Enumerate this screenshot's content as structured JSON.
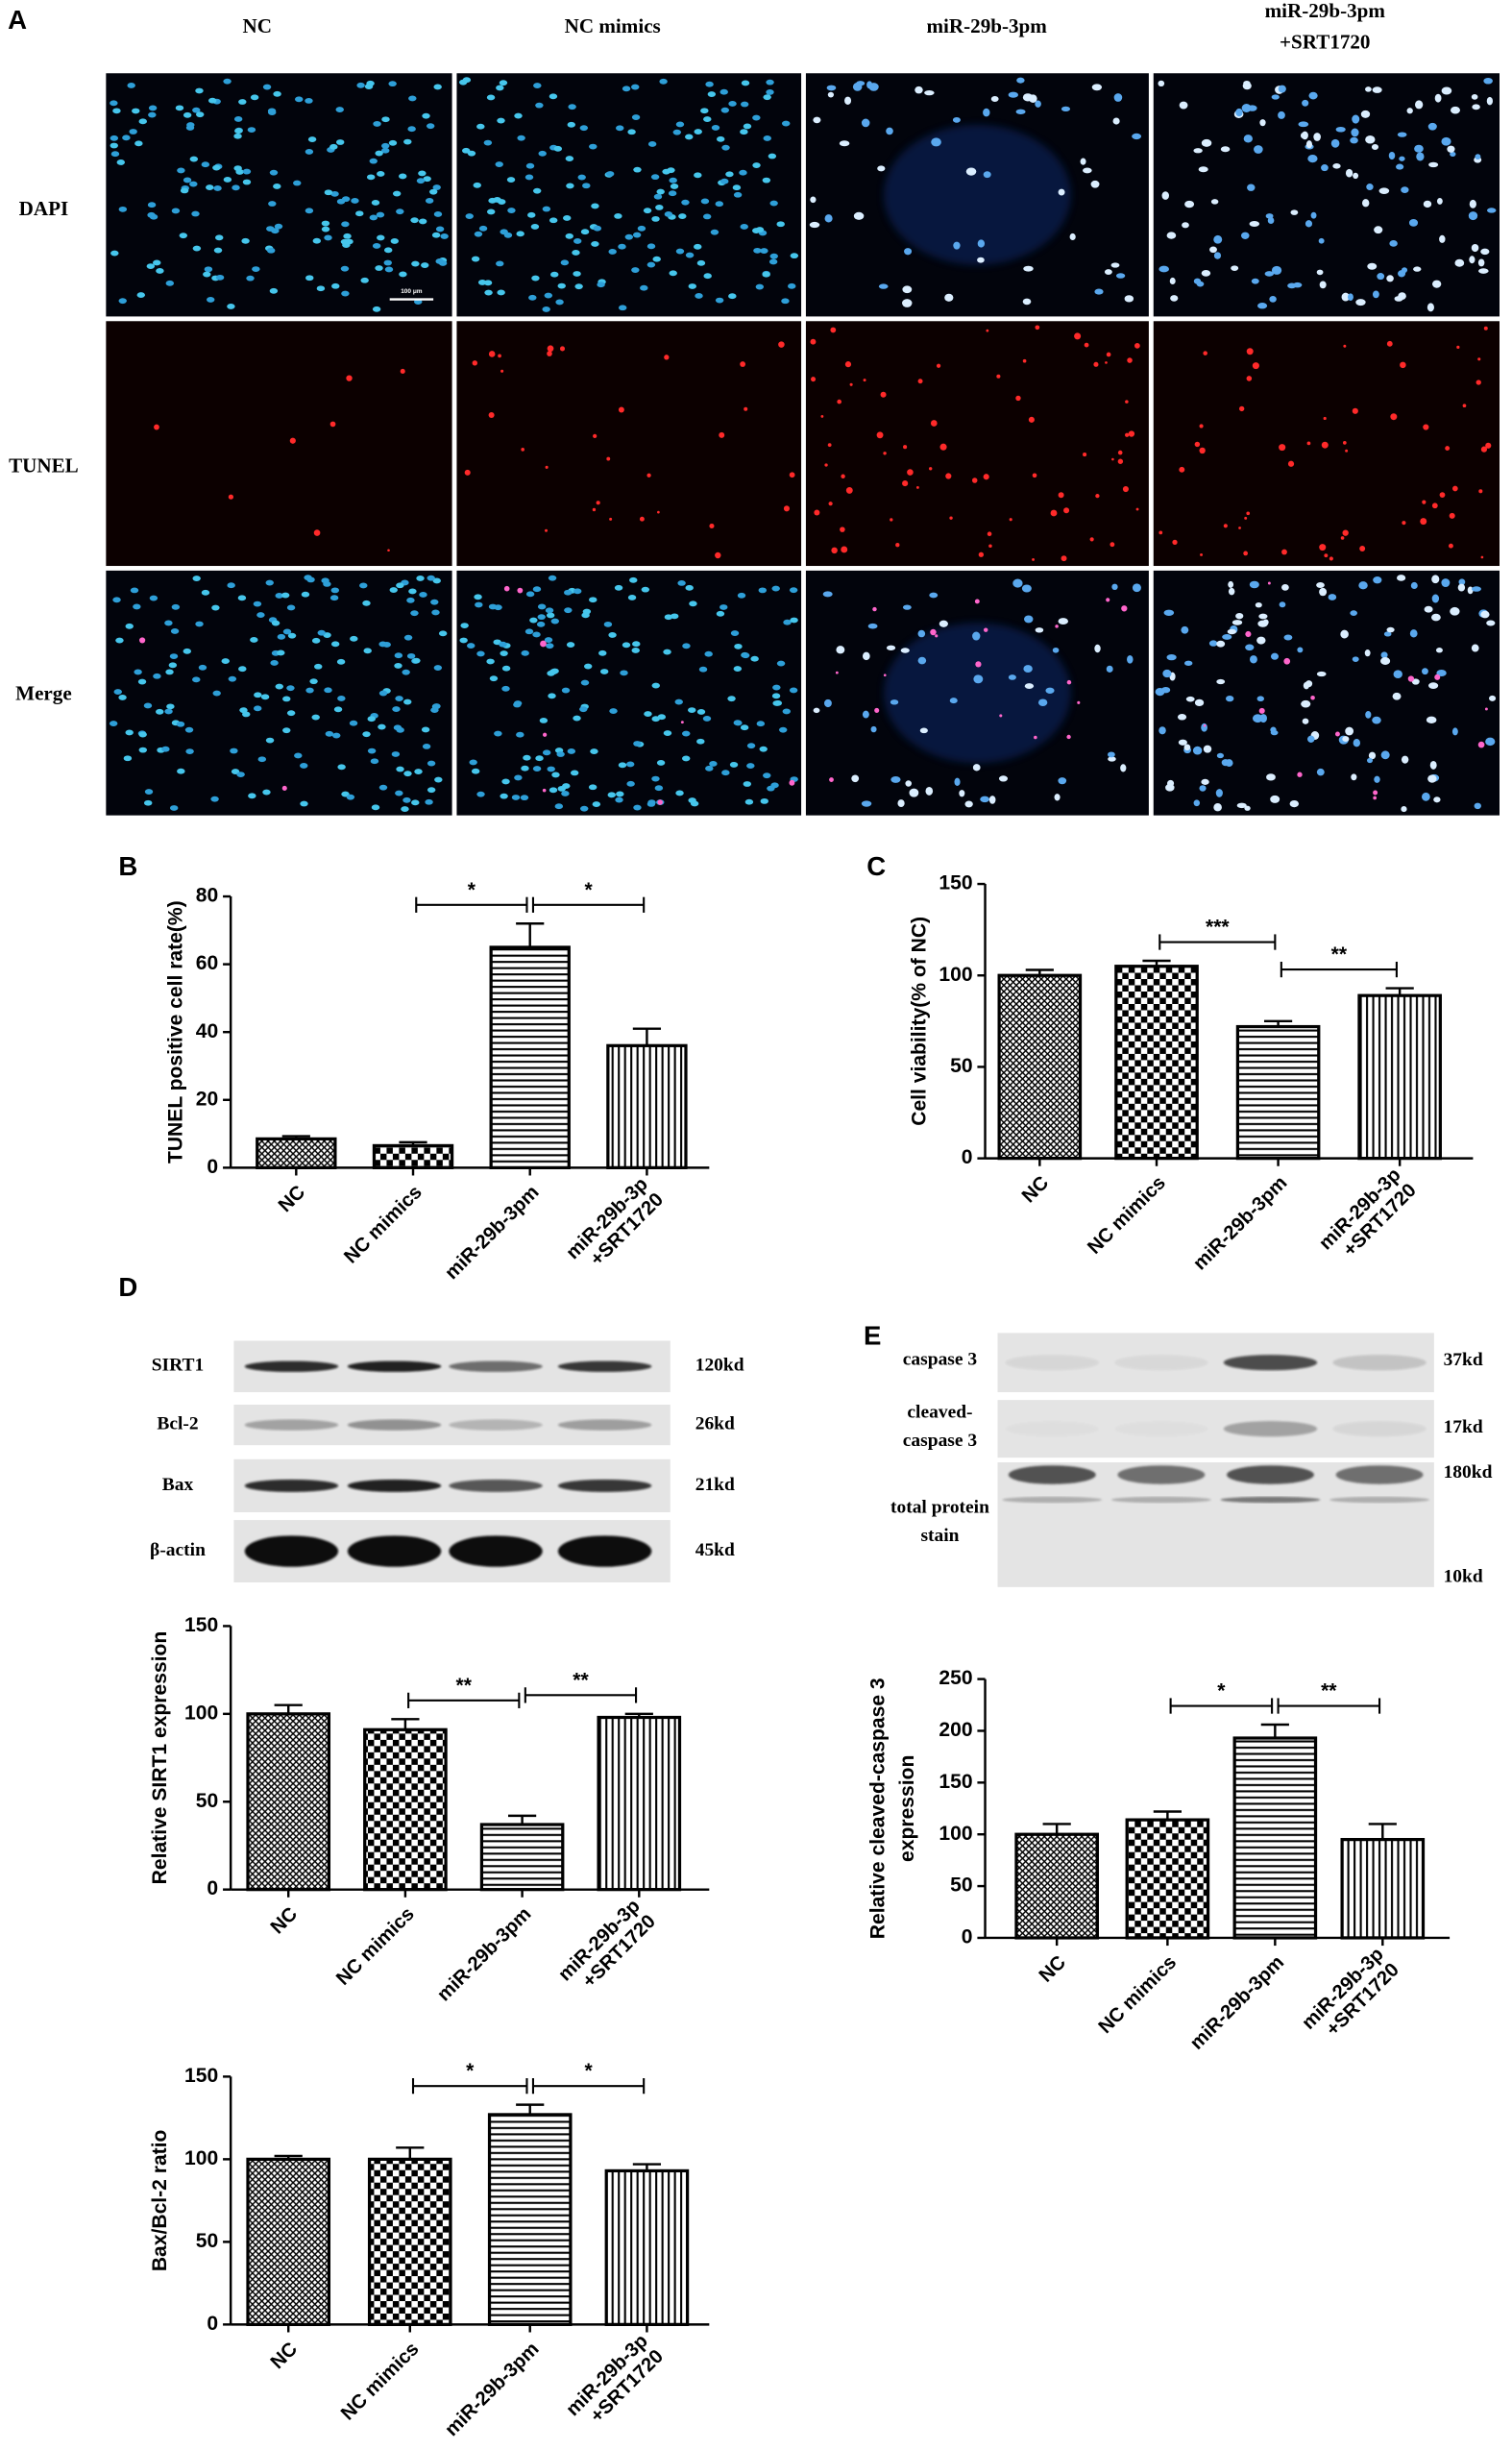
{
  "panel_labels": {
    "a": "A",
    "b": "B",
    "c": "C",
    "d": "D",
    "e": "E"
  },
  "panel_a": {
    "columns": [
      "NC",
      "NC mimics",
      "miR-29b-3pm",
      [
        "miR-29b-3pm",
        "+SRT1720"
      ]
    ],
    "rows": [
      "DAPI",
      "TUNEL",
      "Merge"
    ],
    "scale_bar": "100 μm"
  },
  "blots_d": {
    "rows": [
      {
        "label": "SIRT1",
        "size": "120kd"
      },
      {
        "label": "Bcl-2",
        "size": "26kd"
      },
      {
        "label": "Bax",
        "size": "21kd"
      },
      {
        "label": "β-actin",
        "size": "45kd"
      }
    ]
  },
  "blots_e": {
    "rows": [
      {
        "label": [
          "caspase 3"
        ],
        "size": "37kd"
      },
      {
        "label": [
          "cleaved-",
          "caspase 3"
        ],
        "size": "17kd"
      },
      {
        "label": [
          "total protein",
          "stain"
        ],
        "size": "180kd"
      }
    ],
    "bottom_size": "10kd"
  },
  "chart_data": [
    {
      "type": "bar",
      "ylabel": [
        "TUNEL positive cell rate(%)"
      ],
      "categories": [
        "NC",
        "NC mimics",
        "miR-29b-3pm",
        [
          "miR-29b-3p",
          "+SRT1720"
        ]
      ],
      "values": [
        8.5,
        6.5,
        65,
        36
      ],
      "errors": [
        0.8,
        1,
        7,
        5
      ],
      "patterns": [
        "crosshatch",
        "checker",
        "horizontal",
        "vertical"
      ],
      "ylim": [
        0,
        80
      ],
      "yticks": [
        0,
        20,
        40,
        60,
        80
      ],
      "significance": [
        {
          "groups": [
            1,
            2
          ],
          "label": "*"
        },
        {
          "groups": [
            2,
            3
          ],
          "label": "*"
        }
      ]
    },
    {
      "type": "bar",
      "ylabel": [
        "Cell viability(% of NC)"
      ],
      "categories": [
        "NC",
        "NC mimics",
        "miR-29b-3pm",
        [
          "miR-29b-3p",
          "+SRT1720"
        ]
      ],
      "values": [
        100,
        105,
        72,
        89
      ],
      "errors": [
        3,
        3,
        3,
        4
      ],
      "patterns": [
        "crosshatch",
        "checker",
        "horizontal",
        "vertical"
      ],
      "ylim": [
        0,
        150
      ],
      "yticks": [
        0,
        50,
        100,
        150
      ],
      "significance": [
        {
          "groups": [
            1,
            2
          ],
          "label": "***"
        },
        {
          "groups": [
            2,
            3
          ],
          "label": "**"
        }
      ]
    },
    {
      "type": "bar",
      "ylabel": [
        "Relative SIRT1 expression"
      ],
      "categories": [
        "NC",
        "NC mimics",
        "miR-29b-3pm",
        [
          "miR-29b-3p",
          "+SRT1720"
        ]
      ],
      "values": [
        100,
        91,
        37,
        98
      ],
      "errors": [
        5,
        6,
        5,
        2
      ],
      "patterns": [
        "crosshatch",
        "checker",
        "horizontal",
        "vertical"
      ],
      "ylim": [
        0,
        150
      ],
      "yticks": [
        0,
        50,
        100,
        150
      ],
      "significance": [
        {
          "groups": [
            1,
            2
          ],
          "label": "**"
        },
        {
          "groups": [
            2,
            3
          ],
          "label": "**"
        }
      ]
    },
    {
      "type": "bar",
      "ylabel": [
        "Bax/Bcl-2 ratio"
      ],
      "categories": [
        "NC",
        "NC mimics",
        "miR-29b-3pm",
        [
          "miR-29b-3p",
          "+SRT1720"
        ]
      ],
      "values": [
        100,
        100,
        127,
        93
      ],
      "errors": [
        2,
        7,
        6,
        4
      ],
      "patterns": [
        "crosshatch",
        "checker",
        "horizontal",
        "vertical"
      ],
      "ylim": [
        0,
        150
      ],
      "yticks": [
        0,
        50,
        100,
        150
      ],
      "significance": [
        {
          "groups": [
            1,
            2
          ],
          "label": "*"
        },
        {
          "groups": [
            2,
            3
          ],
          "label": "*"
        }
      ]
    },
    {
      "type": "bar",
      "ylabel": [
        "Relative cleaved-caspase 3",
        "expression"
      ],
      "categories": [
        "NC",
        "NC mimics",
        "miR-29b-3pm",
        [
          "miR-29b-3p",
          "+SRT1720"
        ]
      ],
      "values": [
        100,
        114,
        193,
        95
      ],
      "errors": [
        10,
        8,
        13,
        15
      ],
      "patterns": [
        "crosshatch",
        "checker",
        "horizontal",
        "vertical"
      ],
      "ylim": [
        0,
        250
      ],
      "yticks": [
        0,
        50,
        100,
        150,
        200,
        250
      ],
      "significance": [
        {
          "groups": [
            1,
            2
          ],
          "label": "*"
        },
        {
          "groups": [
            2,
            3
          ],
          "label": "**"
        }
      ]
    }
  ]
}
